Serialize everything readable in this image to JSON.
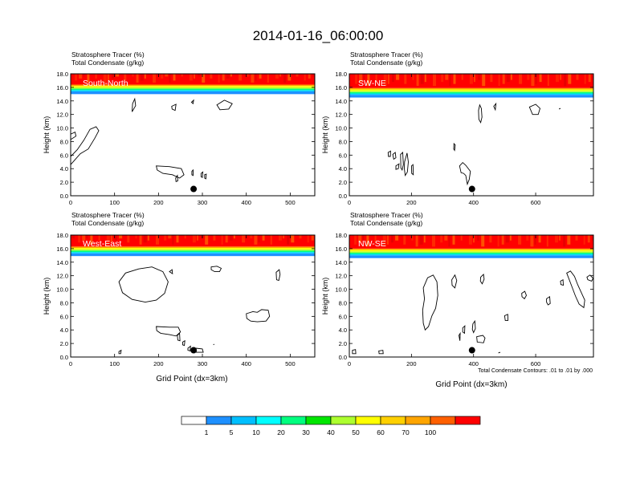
{
  "title": "2014-01-16_06:00:00",
  "chart_data": [
    {
      "type": "heatmap",
      "label": "South-North",
      "subtitle_lines": [
        "Stratosphere Tracer   (%)",
        "Total Condensate   (g/kg)"
      ],
      "xlabel": "",
      "ylabel": "Height (km)",
      "xlim": [
        0,
        556
      ],
      "ylim": [
        0,
        18
      ],
      "xticks": [
        0,
        100,
        200,
        300,
        400,
        500
      ],
      "yticks": [
        "0.0",
        "2.0",
        "4.0",
        "6.0",
        "8.0",
        "10.0",
        "12.0",
        "14.0",
        "16.0",
        "18.0"
      ],
      "tracer_base_km": 15.3,
      "marker": {
        "x": 280,
        "y_km": 1.0
      },
      "contours": [
        [
          [
            0,
            4.6
          ],
          [
            22,
            6.2
          ],
          [
            40,
            6.9
          ],
          [
            55,
            8.5
          ],
          [
            64,
            9.6
          ],
          [
            58,
            10.2
          ],
          [
            44,
            9.8
          ],
          [
            30,
            8.2
          ],
          [
            15,
            6.8
          ],
          [
            0,
            5.8
          ]
        ],
        [
          [
            0,
            8.3
          ],
          [
            12,
            8.8
          ],
          [
            10,
            9.4
          ],
          [
            0,
            9.1
          ]
        ],
        [
          [
            140,
            12.4
          ],
          [
            148,
            13.3
          ],
          [
            146,
            14.3
          ],
          [
            141,
            13.6
          ]
        ],
        [
          [
            230,
            13.2
          ],
          [
            240,
            13.5
          ],
          [
            238,
            12.6
          ],
          [
            231,
            12.8
          ]
        ],
        [
          [
            275,
            13.8
          ],
          [
            280,
            14.1
          ],
          [
            279,
            13.6
          ]
        ],
        [
          [
            333,
            13.4
          ],
          [
            350,
            14.1
          ],
          [
            368,
            13.6
          ],
          [
            360,
            12.8
          ],
          [
            340,
            12.7
          ]
        ],
        [
          [
            195,
            4.4
          ],
          [
            225,
            4.3
          ],
          [
            252,
            4.0
          ],
          [
            258,
            3.1
          ],
          [
            248,
            2.6
          ],
          [
            232,
            3.1
          ],
          [
            210,
            3.3
          ],
          [
            197,
            3.8
          ]
        ],
        [
          [
            239,
            2.6
          ],
          [
            243,
            3.0
          ],
          [
            244,
            2.2
          ],
          [
            240,
            2.1
          ]
        ],
        [
          [
            276,
            3.6
          ],
          [
            279,
            3.8
          ],
          [
            279,
            3.0
          ],
          [
            276,
            3.1
          ]
        ],
        [
          [
            297,
            3.3
          ],
          [
            301,
            3.5
          ],
          [
            300,
            2.7
          ],
          [
            297,
            2.8
          ]
        ],
        [
          [
            305,
            3.1
          ],
          [
            309,
            3.2
          ],
          [
            308,
            2.5
          ],
          [
            305,
            2.6
          ]
        ]
      ]
    },
    {
      "type": "heatmap",
      "label": "SW-NE",
      "subtitle_lines": [
        "Stratosphere Tracer   (%)",
        "Total Condensate   (g/kg)"
      ],
      "xlabel": "",
      "ylabel": "Height (km)",
      "xlim": [
        0,
        786
      ],
      "ylim": [
        0,
        18
      ],
      "xticks": [
        0,
        200,
        400,
        600
      ],
      "yticks": [
        "0.0",
        "2.0",
        "4.0",
        "6.0",
        "8.0",
        "10.0",
        "12.0",
        "14.0",
        "16.0",
        "18.0"
      ],
      "tracer_base_km": 14.8,
      "marker": {
        "x": 395,
        "y_km": 1.0
      },
      "contours": [
        [
          [
            420,
            13.4
          ],
          [
            425,
            12.9
          ],
          [
            427,
            11.6
          ],
          [
            423,
            10.8
          ],
          [
            417,
            11.3
          ],
          [
            416,
            12.6
          ]
        ],
        [
          [
            465,
            13.2
          ],
          [
            472,
            13.6
          ],
          [
            470,
            12.7
          ]
        ],
        [
          [
            580,
            13.1
          ],
          [
            600,
            13.5
          ],
          [
            614,
            12.9
          ],
          [
            608,
            12.0
          ],
          [
            590,
            12.0
          ]
        ],
        [
          [
            675,
            12.8
          ],
          [
            680,
            12.9
          ]
        ],
        [
          [
            125,
            6.4
          ],
          [
            133,
            6.6
          ],
          [
            132,
            5.8
          ],
          [
            126,
            5.8
          ]
        ],
        [
          [
            140,
            6.1
          ],
          [
            148,
            6.4
          ],
          [
            150,
            5.6
          ],
          [
            143,
            5.4
          ]
        ],
        [
          [
            150,
            4.4
          ],
          [
            160,
            4.7
          ],
          [
            158,
            4.0
          ],
          [
            150,
            3.9
          ]
        ],
        [
          [
            165,
            6.1
          ],
          [
            172,
            6.4
          ],
          [
            174,
            4.6
          ],
          [
            170,
            3.8
          ],
          [
            166,
            4.1
          ]
        ],
        [
          [
            178,
            5.0
          ],
          [
            186,
            6.3
          ],
          [
            190,
            5.0
          ],
          [
            187,
            3.5
          ],
          [
            180,
            3.0
          ],
          [
            177,
            4.0
          ]
        ],
        [
          [
            200,
            4.4
          ],
          [
            205,
            4.6
          ],
          [
            206,
            3.1
          ],
          [
            201,
            3.3
          ]
        ],
        [
          [
            337,
            7.7
          ],
          [
            341,
            7.5
          ],
          [
            339,
            6.7
          ],
          [
            336,
            6.9
          ]
        ],
        [
          [
            355,
            4.4
          ],
          [
            365,
            4.9
          ],
          [
            375,
            4.5
          ],
          [
            390,
            3.6
          ],
          [
            386,
            2.4
          ],
          [
            380,
            1.7
          ],
          [
            375,
            3.0
          ],
          [
            368,
            3.3
          ],
          [
            360,
            3.4
          ]
        ]
      ]
    },
    {
      "type": "heatmap",
      "label": "West-East",
      "subtitle_lines": [
        "Stratosphere Tracer   (%)",
        "Total Condensate   (g/kg)"
      ],
      "xlabel": "Grid Point (dx=3km)",
      "ylabel": "Height (km)",
      "xlim": [
        0,
        556
      ],
      "ylim": [
        0,
        18
      ],
      "xticks": [
        0,
        100,
        200,
        300,
        400,
        500
      ],
      "yticks": [
        "0.0",
        "2.0",
        "4.0",
        "6.0",
        "8.0",
        "10.0",
        "12.0",
        "14.0",
        "16.0",
        "18.0"
      ],
      "tracer_base_km": 15.2,
      "marker": {
        "x": 280,
        "y_km": 1.0
      },
      "contours": [
        [
          [
            110,
            11.1
          ],
          [
            125,
            12.4
          ],
          [
            155,
            13.0
          ],
          [
            185,
            13.3
          ],
          [
            210,
            12.6
          ],
          [
            222,
            11.1
          ],
          [
            214,
            9.4
          ],
          [
            195,
            8.4
          ],
          [
            170,
            8.1
          ],
          [
            140,
            8.5
          ],
          [
            118,
            9.5
          ]
        ],
        [
          [
            320,
            13.3
          ],
          [
            333,
            13.4
          ],
          [
            343,
            13.1
          ],
          [
            339,
            12.6
          ],
          [
            328,
            12.6
          ],
          [
            320,
            12.9
          ]
        ],
        [
          [
            225,
            12.6
          ],
          [
            231,
            12.9
          ],
          [
            232,
            12.3
          ]
        ],
        [
          [
            468,
            12.5
          ],
          [
            475,
            12.9
          ],
          [
            477,
            12.2
          ],
          [
            474,
            11.3
          ],
          [
            469,
            11.4
          ]
        ],
        [
          [
            400,
            6.4
          ],
          [
            415,
            6.7
          ],
          [
            425,
            6.6
          ],
          [
            435,
            7.0
          ],
          [
            450,
            6.9
          ],
          [
            453,
            6.0
          ],
          [
            445,
            5.3
          ],
          [
            425,
            5.2
          ],
          [
            410,
            5.3
          ],
          [
            401,
            5.7
          ]
        ],
        [
          [
            195,
            4.5
          ],
          [
            225,
            4.4
          ],
          [
            245,
            4.4
          ],
          [
            250,
            3.7
          ],
          [
            240,
            3.1
          ],
          [
            225,
            3.3
          ],
          [
            205,
            3.5
          ],
          [
            196,
            3.9
          ]
        ],
        [
          [
            243,
            3.2
          ],
          [
            248,
            3.5
          ],
          [
            249,
            2.4
          ],
          [
            244,
            2.5
          ]
        ],
        [
          [
            255,
            2.2
          ],
          [
            260,
            2.4
          ],
          [
            259,
            1.7
          ],
          [
            255,
            1.8
          ]
        ],
        [
          [
            267,
            1.3
          ],
          [
            273,
            1.6
          ],
          [
            272,
            0.9
          ],
          [
            267,
            1.0
          ]
        ],
        [
          [
            285,
            1.3
          ],
          [
            300,
            1.2
          ],
          [
            302,
            0.7
          ],
          [
            286,
            0.7
          ]
        ],
        [
          [
            110,
            0.8
          ],
          [
            115,
            1.0
          ],
          [
            114,
            0.5
          ],
          [
            110,
            0.5
          ]
        ],
        [
          [
            325,
            1.8
          ],
          [
            327,
            1.9
          ]
        ]
      ]
    },
    {
      "type": "heatmap",
      "label": "NW-SE",
      "subtitle_lines": [
        "Stratosphere Tracer   (%)",
        "Total Condensate   (g/kg)"
      ],
      "xlabel": "Grid Point (dx=3km)",
      "ylabel": "Height (km)",
      "xlim": [
        0,
        786
      ],
      "ylim": [
        0,
        18
      ],
      "xticks": [
        0,
        200,
        400,
        600
      ],
      "yticks": [
        "0.0",
        "2.0",
        "4.0",
        "6.0",
        "8.0",
        "10.0",
        "12.0",
        "14.0",
        "16.0",
        "18.0"
      ],
      "tracer_base_km": 14.9,
      "marker": {
        "x": 395,
        "y_km": 1.0
      },
      "contours": [
        [
          [
            238,
            10.2
          ],
          [
            252,
            11.7
          ],
          [
            270,
            12.1
          ],
          [
            282,
            11.1
          ],
          [
            285,
            9.1
          ],
          [
            278,
            7.2
          ],
          [
            266,
            6.1
          ],
          [
            255,
            4.5
          ],
          [
            244,
            4.0
          ],
          [
            238,
            5.0
          ],
          [
            236,
            6.9
          ],
          [
            242,
            8.6
          ]
        ],
        [
          [
            330,
            11.4
          ],
          [
            340,
            12.1
          ],
          [
            346,
            11.3
          ],
          [
            340,
            10.2
          ],
          [
            331,
            10.6
          ]
        ],
        [
          [
            423,
            11.8
          ],
          [
            432,
            12.2
          ],
          [
            434,
            11.5
          ],
          [
            428,
            10.8
          ],
          [
            422,
            11.2
          ]
        ],
        [
          [
            680,
            11.2
          ],
          [
            688,
            11.4
          ],
          [
            689,
            10.6
          ],
          [
            681,
            10.7
          ]
        ],
        [
          [
            555,
            9.4
          ],
          [
            565,
            9.7
          ],
          [
            570,
            9.1
          ],
          [
            564,
            8.6
          ],
          [
            556,
            8.9
          ]
        ],
        [
          [
            635,
            8.6
          ],
          [
            645,
            8.9
          ],
          [
            647,
            7.9
          ],
          [
            640,
            7.7
          ],
          [
            635,
            8.1
          ]
        ],
        [
          [
            700,
            12.4
          ],
          [
            715,
            10.6
          ],
          [
            728,
            9.0
          ],
          [
            740,
            7.8
          ],
          [
            755,
            7.3
          ],
          [
            758,
            8.4
          ],
          [
            748,
            9.4
          ],
          [
            735,
            10.7
          ],
          [
            725,
            11.9
          ],
          [
            712,
            12.7
          ]
        ],
        [
          [
            765,
            11.8
          ],
          [
            775,
            12.1
          ],
          [
            785,
            11.6
          ],
          [
            780,
            11.2
          ],
          [
            768,
            11.4
          ]
        ],
        [
          [
            500,
            6.1
          ],
          [
            510,
            6.3
          ],
          [
            511,
            5.4
          ],
          [
            502,
            5.4
          ]
        ],
        [
          [
            398,
            4.9
          ],
          [
            404,
            5.3
          ],
          [
            406,
            4.2
          ],
          [
            400,
            3.6
          ],
          [
            396,
            4.1
          ]
        ],
        [
          [
            365,
            4.3
          ],
          [
            372,
            4.6
          ],
          [
            371,
            3.5
          ],
          [
            365,
            3.7
          ]
        ],
        [
          [
            353,
            3.2
          ],
          [
            357,
            3.5
          ],
          [
            356,
            2.4
          ]
        ],
        [
          [
            410,
            3.0
          ],
          [
            430,
            3.2
          ],
          [
            437,
            2.8
          ],
          [
            432,
            2.1
          ],
          [
            412,
            2.2
          ]
        ],
        [
          [
            10,
            1.0
          ],
          [
            20,
            1.1
          ],
          [
            21,
            0.5
          ],
          [
            10,
            0.5
          ]
        ],
        [
          [
            95,
            0.9
          ],
          [
            108,
            1.0
          ],
          [
            109,
            0.5
          ],
          [
            96,
            0.5
          ]
        ],
        [
          [
            480,
            0.6
          ],
          [
            486,
            0.7
          ]
        ]
      ]
    }
  ],
  "legend": {
    "colors": [
      "#ffffff",
      "#1e90ff",
      "#00bfff",
      "#00ffff",
      "#00ff7f",
      "#00e600",
      "#adff2f",
      "#ffff00",
      "#ffd000",
      "#ffa500",
      "#ff6000",
      "#ff0000"
    ],
    "labels": [
      "1",
      "5",
      "10",
      "20",
      "30",
      "40",
      "50",
      "60",
      "70",
      "100"
    ]
  },
  "contour_note": "Total Condensate Contours: .01 to .01 by .000"
}
